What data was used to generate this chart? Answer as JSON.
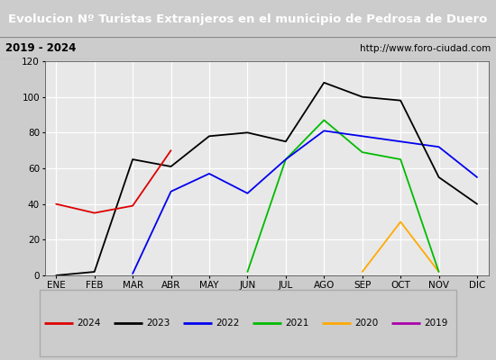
{
  "title": "Evolucion Nº Turistas Extranjeros en el municipio de Pedrosa de Duero",
  "subtitle_left": "2019 - 2024",
  "subtitle_right": "http://www.foro-ciudad.com",
  "months": [
    "ENE",
    "FEB",
    "MAR",
    "ABR",
    "MAY",
    "JUN",
    "JUL",
    "AGO",
    "SEP",
    "OCT",
    "NOV",
    "DIC"
  ],
  "series": {
    "2024": {
      "data": [
        40,
        35,
        39,
        70,
        null,
        null,
        null,
        null,
        null,
        null,
        null,
        null
      ],
      "color": "#dd0000"
    },
    "2023": {
      "data": [
        0,
        2,
        65,
        61,
        78,
        80,
        75,
        108,
        100,
        98,
        55,
        40
      ],
      "color": "#000000"
    },
    "2022": {
      "data": [
        null,
        null,
        1,
        47,
        57,
        46,
        65,
        81,
        78,
        75,
        72,
        55
      ],
      "color": "#0000ee"
    },
    "2021": {
      "data": [
        null,
        null,
        null,
        null,
        null,
        2,
        65,
        87,
        69,
        65,
        2,
        null
      ],
      "color": "#00bb00"
    },
    "2020": {
      "data": [
        null,
        null,
        null,
        null,
        null,
        null,
        null,
        null,
        2,
        30,
        2,
        null
      ],
      "color": "#ffaa00"
    },
    "2019": {
      "data": [
        null,
        null,
        null,
        null,
        null,
        null,
        null,
        null,
        null,
        null,
        null,
        null
      ],
      "color": "#aa00aa"
    }
  },
  "ylim": [
    0,
    120
  ],
  "yticks": [
    0,
    20,
    40,
    60,
    80,
    100,
    120
  ],
  "title_bg": "#4472c4",
  "title_color": "#ffffff",
  "plot_bg": "#e8e8e8",
  "grid_color": "#ffffff",
  "subtitle_bg": "#cccccc",
  "legend_order": [
    "2024",
    "2023",
    "2022",
    "2021",
    "2020",
    "2019"
  ],
  "outer_bg": "#cccccc"
}
